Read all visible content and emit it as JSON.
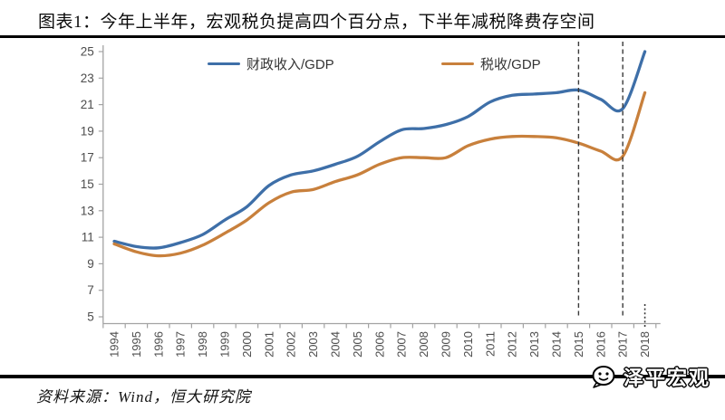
{
  "title": "图表1：今年上半年，宏观税负提高四个百分点，下半年减税降费存空间",
  "source_note": "资料来源：Wind，恒大研究院",
  "watermark": "泽平宏观",
  "colors": {
    "fiscal_line": "#3e6fa8",
    "tax_line": "#c8803c",
    "axis": "#a3a3a3",
    "tick_label": "#4d4d4d",
    "dashed_line": "#3a3a3a",
    "divider_rule": "#000000"
  },
  "chart_data": {
    "type": "line",
    "x": [
      1994,
      1995,
      1996,
      1997,
      1998,
      1999,
      2000,
      2001,
      2002,
      2003,
      2004,
      2005,
      2006,
      2007,
      2008,
      2009,
      2010,
      2011,
      2012,
      2013,
      2014,
      2015,
      2016,
      2017,
      2018
    ],
    "series": [
      {
        "name": "财政收入/GDP",
        "color": "#3e6fa8",
        "values": [
          10.7,
          10.3,
          10.2,
          10.6,
          11.2,
          12.3,
          13.3,
          14.9,
          15.7,
          16.0,
          16.5,
          17.1,
          18.2,
          19.1,
          19.2,
          19.5,
          20.1,
          21.2,
          21.7,
          21.8,
          21.9,
          22.1,
          21.4,
          20.7,
          25.0
        ]
      },
      {
        "name": "税收/GDP",
        "color": "#c8803c",
        "values": [
          10.5,
          9.9,
          9.6,
          9.8,
          10.4,
          11.3,
          12.3,
          13.6,
          14.4,
          14.6,
          15.2,
          15.7,
          16.5,
          17.0,
          17.0,
          17.0,
          17.9,
          18.4,
          18.6,
          18.6,
          18.5,
          18.1,
          17.5,
          17.1,
          21.9
        ]
      }
    ],
    "ylim": [
      5,
      25
    ],
    "ytick_step": 2,
    "yticks": [
      5,
      7,
      9,
      11,
      13,
      15,
      17,
      19,
      21,
      23,
      25
    ],
    "legend_position": "top",
    "grid": false,
    "smooth": true,
    "annotations": {
      "dashed_vlines": [
        2015,
        2017
      ],
      "dotted_vline": 2018
    }
  }
}
